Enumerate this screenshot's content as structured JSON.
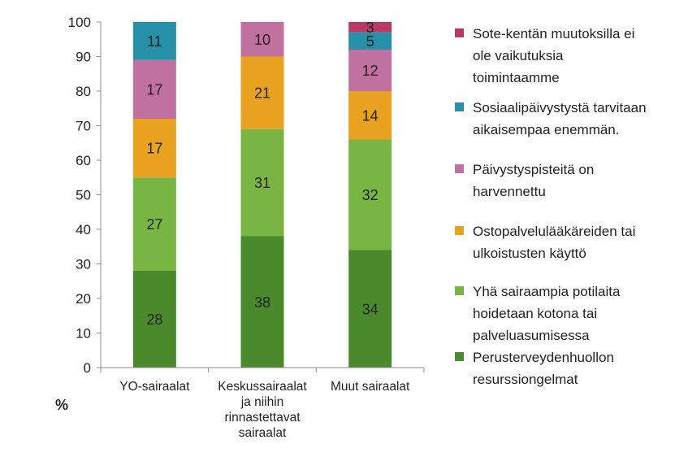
{
  "chart_data": {
    "type": "bar",
    "stacked": true,
    "categories": [
      "YO-sairaalat",
      "Keskussairaalat ja niihin rinnastettavat sairaalat",
      "Muut sairaalat"
    ],
    "category_lines": [
      [
        "YO-sairaalat"
      ],
      [
        "Keskussairaalat",
        "ja niihin",
        "rinnastettavat",
        "sairaalat"
      ],
      [
        "Muut sairaalat"
      ]
    ],
    "series": [
      {
        "name": "Perusterveydenhuollon resurssiongelmat",
        "values": [
          28,
          38,
          34
        ],
        "color": "#4a8a2c"
      },
      {
        "name": "Yhä sairaampia potilaita hoidetaan kotona tai palveluasumisessa",
        "values": [
          27,
          31,
          32
        ],
        "color": "#78b543"
      },
      {
        "name": "Ostopalvelulääkäreiden tai ulkoistusten käyttö",
        "values": [
          17,
          21,
          14
        ],
        "color": "#e8a21f"
      },
      {
        "name": "Päivystyspisteitä on harvennettu",
        "values": [
          17,
          10,
          12
        ],
        "color": "#c1719f"
      },
      {
        "name": "Sosiaalipäivystystä tarvitaan aikaisempaa enemmän.",
        "values": [
          11,
          null,
          5
        ],
        "color": "#2590a8"
      },
      {
        "name": "Sote-kentän muutoksilla ei ole vaikutuksia toimintaamme",
        "values": [
          null,
          null,
          3
        ],
        "color": "#b83a63"
      }
    ],
    "legend_order": [
      5,
      4,
      3,
      2,
      1,
      0
    ],
    "legend_lines": [
      [
        "Sote-kentän muutoksilla ei",
        "ole vaikutuksia",
        "toimintaamme"
      ],
      [
        "Sosiaalipäivystystä tarvitaan",
        "aikaisempaa enemmän."
      ],
      [
        "Päivystyspisteitä on",
        "harvennettu"
      ],
      [
        "Ostopalvelulääkäreiden tai",
        "ulkoistusten käyttö"
      ],
      [
        "Yhä sairaampia potilaita",
        "hoidetaan kotona tai",
        "palveluasumisessa"
      ],
      [
        "Perusterveydenhuollon",
        "resurssiongelmat"
      ]
    ],
    "ylabel": "%",
    "ylim": [
      0,
      100
    ],
    "yticks": [
      0,
      10,
      20,
      30,
      40,
      50,
      60,
      70,
      80,
      90,
      100
    ],
    "grid": false,
    "legend_position": "right"
  }
}
